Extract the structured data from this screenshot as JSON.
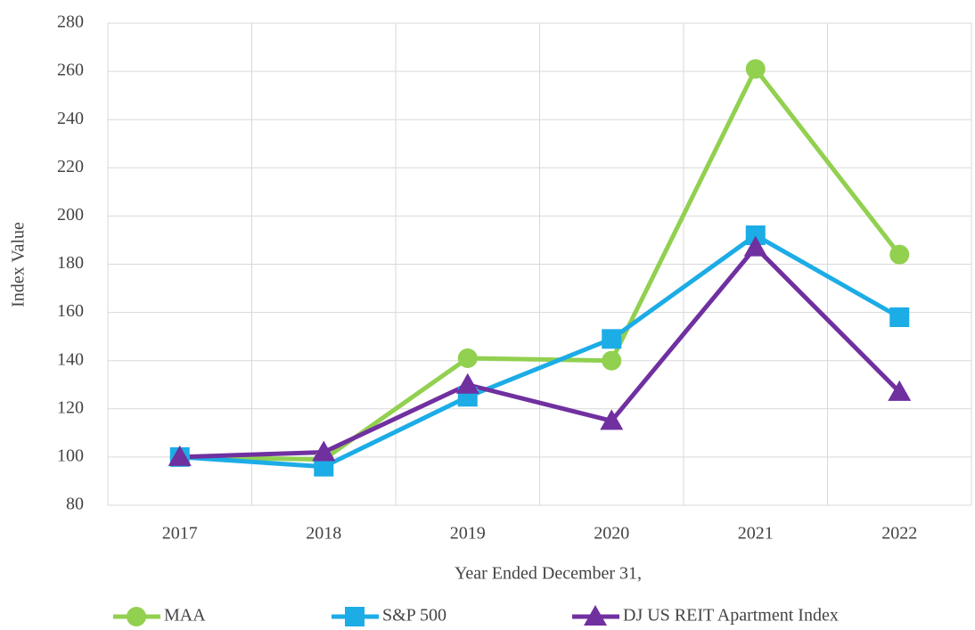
{
  "chart_data": {
    "type": "line",
    "x_label": "Year Ended December 31,",
    "y_label": "Index Value",
    "categories": [
      "2017",
      "2018",
      "2019",
      "2020",
      "2021",
      "2022"
    ],
    "series": [
      {
        "name": "MAA",
        "color": "#92d050",
        "marker": "circle",
        "values": [
          100,
          99,
          141,
          140,
          261,
          184
        ]
      },
      {
        "name": "S&P 500",
        "color": "#1cace6",
        "marker": "square",
        "values": [
          100,
          96,
          125,
          149,
          192,
          158
        ]
      },
      {
        "name": "DJ US REIT Apartment Index",
        "color": "#7030a0",
        "marker": "triangle",
        "values": [
          100,
          102,
          130,
          115,
          187,
          127
        ]
      }
    ],
    "ylim": [
      80,
      280
    ],
    "yticks": [
      80,
      100,
      120,
      140,
      160,
      180,
      200,
      220,
      240,
      260,
      280
    ],
    "grid": true,
    "legend": "bottom"
  }
}
